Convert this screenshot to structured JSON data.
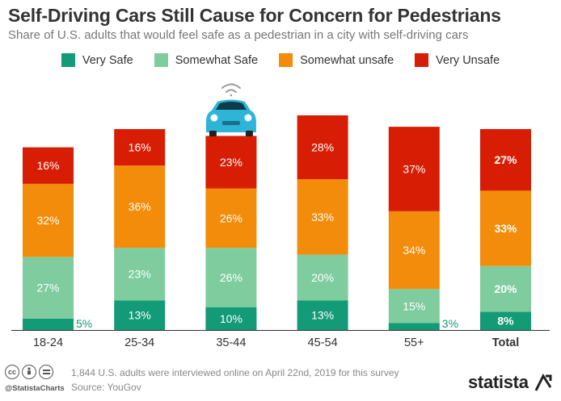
{
  "colors": {
    "very_safe": "#139a76",
    "somewhat_safe": "#7fcc9e",
    "somewhat_unsafe": "#f38c0a",
    "very_unsafe": "#d71e05",
    "car": "#2db4d6"
  },
  "footer": {
    "handle": "@StatistaCharts",
    "note": "1,844 U.S. adults were interviewed online on April 22nd, 2019 for this survey",
    "source": "Source: YouGov",
    "brand": "statista"
  },
  "icons": [
    "cc-icon",
    "by-icon",
    "equals-icon",
    "self-driving-car-icon",
    "wifi-signal-icon",
    "statista-logo-icon"
  ],
  "chart_data": {
    "type": "bar",
    "stacked": true,
    "title": "Self-Driving Cars Still Cause for Concern for Pedestrians",
    "subtitle": "Share of U.S. adults that would feel safe as a pedestrian in a city with self-driving cars",
    "categories": [
      "18-24",
      "25-34",
      "35-44",
      "45-54",
      "55+",
      "Total"
    ],
    "series": [
      {
        "name": "Very Safe",
        "values": [
          5,
          13,
          10,
          13,
          3,
          8
        ],
        "labels": [
          "5%",
          "13%",
          "10%",
          "13%",
          "3%",
          "8%"
        ]
      },
      {
        "name": "Somewhat Safe",
        "values": [
          27,
          23,
          26,
          20,
          15,
          20
        ],
        "labels": [
          "27%",
          "23%",
          "26%",
          "20%",
          "15%",
          "20%"
        ]
      },
      {
        "name": "Somewhat unsafe",
        "values": [
          32,
          36,
          26,
          33,
          34,
          33
        ],
        "labels": [
          "32%",
          "36%",
          "26%",
          "33%",
          "34%",
          "33%"
        ]
      },
      {
        "name": "Very Unsafe",
        "values": [
          16,
          16,
          23,
          28,
          37,
          27
        ],
        "labels": [
          "16%",
          "16%",
          "23%",
          "28%",
          "37%",
          "27%"
        ]
      }
    ],
    "ylim": [
      0,
      100
    ],
    "legend": "top-center",
    "grid": false
  }
}
